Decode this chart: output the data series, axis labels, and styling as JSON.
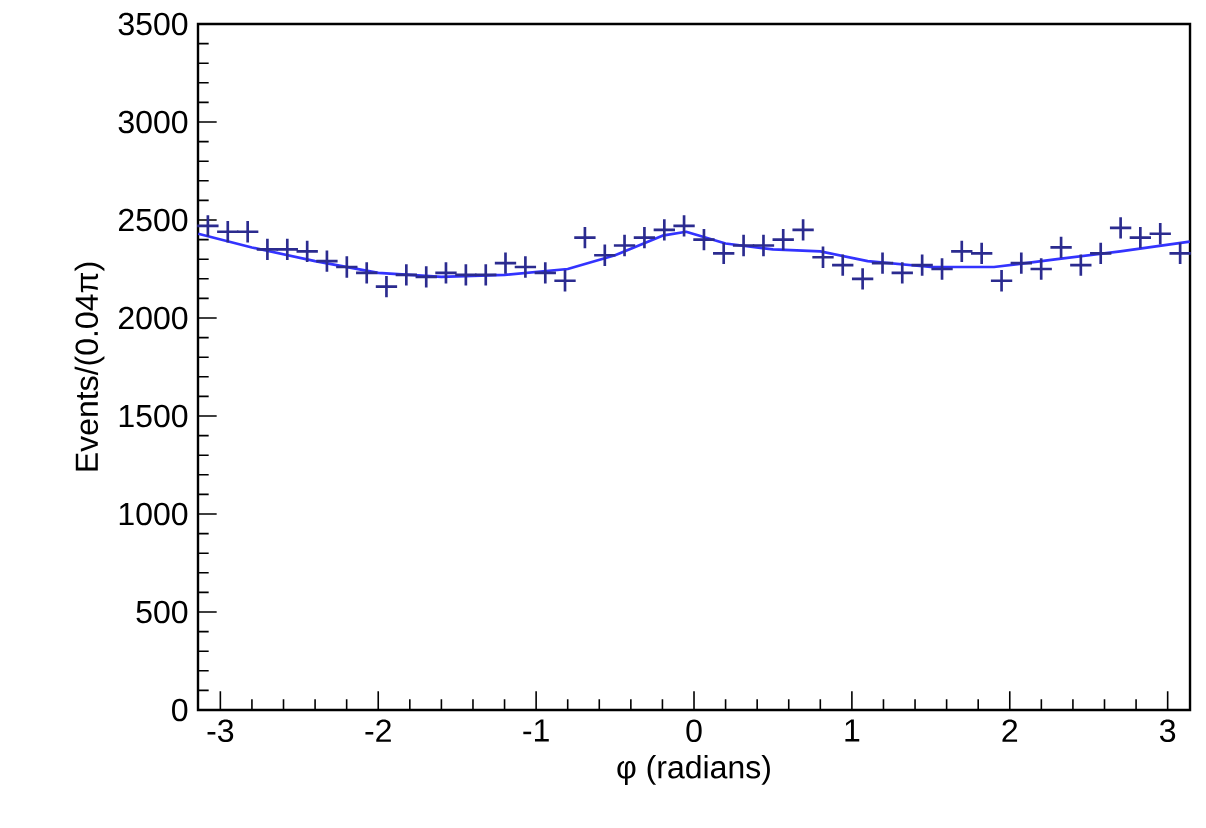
{
  "chart_data": {
    "type": "scatter",
    "xlabel": "φ (radians)",
    "ylabel": "Events/(0.04π)",
    "xlim": [
      -3.1416,
      3.1416
    ],
    "ylim": [
      0,
      3500
    ],
    "xticks": [
      -3,
      -2,
      -1,
      0,
      1,
      2,
      3
    ],
    "yticks": [
      0,
      500,
      1000,
      1500,
      2000,
      2500,
      3000,
      3500
    ],
    "series": [
      {
        "marker": "cross",
        "color": "#2b2b8f",
        "x": [
          -3.079,
          -2.953,
          -2.827,
          -2.702,
          -2.576,
          -2.45,
          -2.325,
          -2.199,
          -2.073,
          -1.948,
          -1.822,
          -1.696,
          -1.571,
          -1.445,
          -1.319,
          -1.194,
          -1.068,
          -0.942,
          -0.817,
          -0.691,
          -0.565,
          -0.44,
          -0.314,
          -0.188,
          -0.063,
          0.063,
          0.188,
          0.314,
          0.44,
          0.565,
          0.691,
          0.817,
          0.942,
          1.068,
          1.194,
          1.319,
          1.445,
          1.571,
          1.696,
          1.822,
          1.948,
          2.073,
          2.199,
          2.325,
          2.45,
          2.576,
          2.702,
          2.827,
          2.953,
          3.079
        ],
        "values": [
          2470,
          2440,
          2440,
          2350,
          2350,
          2340,
          2290,
          2260,
          2230,
          2160,
          2220,
          2210,
          2230,
          2220,
          2220,
          2280,
          2260,
          2230,
          2190,
          2410,
          2320,
          2370,
          2410,
          2450,
          2470,
          2400,
          2330,
          2370,
          2370,
          2400,
          2450,
          2310,
          2270,
          2200,
          2280,
          2230,
          2270,
          2250,
          2340,
          2330,
          2190,
          2280,
          2250,
          2360,
          2270,
          2330,
          2460,
          2410,
          2430,
          2330
        ]
      },
      {
        "type": "line",
        "marker": "none",
        "line_style": "solid",
        "color": "#3333ff",
        "x": [
          -3.14,
          -2.8,
          -2.4,
          -2.0,
          -1.6,
          -1.2,
          -0.8,
          -0.5,
          -0.2,
          -0.05,
          0.2,
          0.5,
          0.8,
          1.1,
          1.5,
          1.9,
          2.3,
          2.7,
          3.14
        ],
        "values": [
          2430,
          2360,
          2290,
          2230,
          2210,
          2220,
          2250,
          2320,
          2420,
          2440,
          2380,
          2350,
          2340,
          2290,
          2260,
          2260,
          2300,
          2340,
          2390
        ]
      }
    ]
  }
}
